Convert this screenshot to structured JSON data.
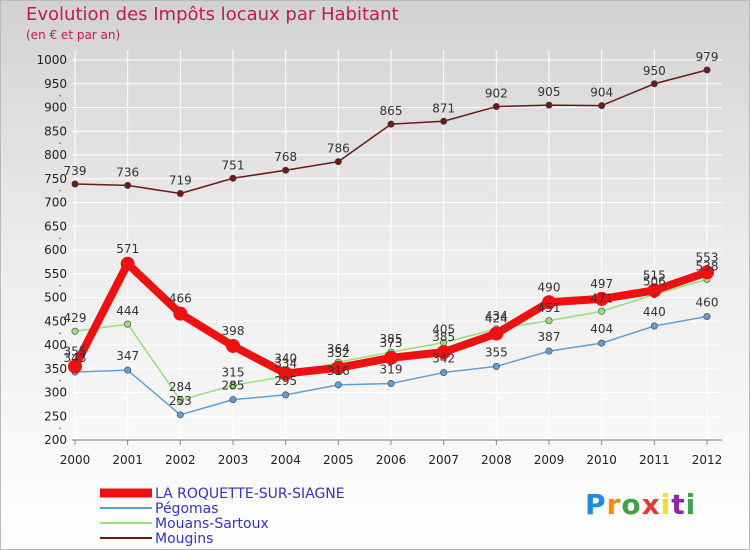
{
  "chart_data": {
    "type": "line",
    "title": "Evolution des Impôts locaux par Habitant",
    "subtitle": "(en € et par an)",
    "xlabel": "",
    "ylabel": "",
    "ylim": [
      200,
      1000
    ],
    "yticks": [
      200,
      250,
      300,
      350,
      400,
      450,
      500,
      550,
      600,
      650,
      700,
      750,
      800,
      850,
      900,
      950,
      1000
    ],
    "x": [
      2000,
      2001,
      2002,
      2003,
      2004,
      2005,
      2006,
      2007,
      2008,
      2009,
      2010,
      2011,
      2012
    ],
    "grid": true,
    "legend": "bottom-left",
    "series": [
      {
        "name": "Mougins",
        "color": "#6b1a1a",
        "values": [
          739,
          736,
          719,
          751,
          768,
          786,
          865,
          871,
          902,
          905,
          904,
          950,
          979
        ]
      },
      {
        "name": "Mouans-Sartoux",
        "color": "#99e07a",
        "values": [
          429,
          444,
          284,
          315,
          334,
          364,
          385,
          405,
          434,
          451,
          471,
          506,
          538
        ]
      },
      {
        "name": "Pégomas",
        "color": "#5f9fd8",
        "values": [
          343,
          347,
          253,
          285,
          295,
          316,
          319,
          342,
          355,
          387,
          404,
          440,
          460
        ]
      },
      {
        "name": "LA ROQUETTE-SUR-SIAGNE",
        "color": "#ee1111",
        "values": [
          355,
          571,
          466,
          398,
          340,
          352,
          373,
          385,
          424,
          490,
          497,
          515,
          553
        ]
      }
    ]
  },
  "logo": {
    "text": "Proxiti",
    "letters": [
      "P",
      "r",
      "o",
      "x",
      "i",
      "t",
      "i"
    ]
  }
}
